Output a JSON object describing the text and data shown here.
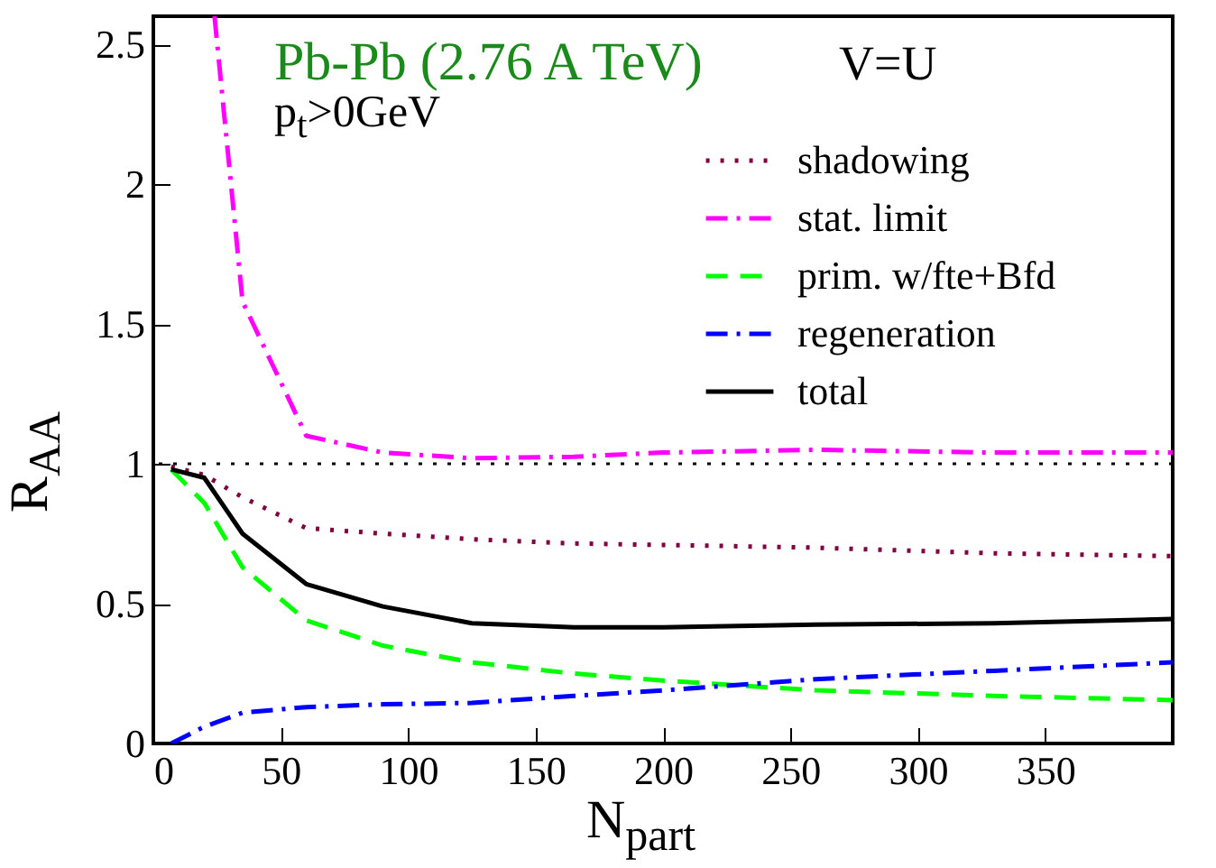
{
  "chart_data": {
    "type": "line",
    "title": "Pb-Pb (2.76 A TeV)",
    "annotations": [
      "p$_{t}$>0GeV",
      "V=U"
    ],
    "xlabel": "N$_{part}$",
    "ylabel": "R$_{AA}$",
    "x": [
      7,
      20,
      35,
      60,
      90,
      125,
      165,
      200,
      260,
      330,
      400
    ],
    "series": [
      {
        "name": "shadowing",
        "color": "#800040",
        "line_style": "dotted",
        "values": [
          0.99,
          0.96,
          0.88,
          0.77,
          0.75,
          0.73,
          0.715,
          0.71,
          0.7,
          0.68,
          0.67
        ]
      },
      {
        "name": "stat. limit",
        "color": "#ff00ff",
        "line_style": "dashdot",
        "x": [
          24,
          35,
          60,
          90,
          125,
          165,
          200,
          260,
          330,
          400
        ],
        "values": [
          2.6,
          1.58,
          1.1,
          1.04,
          1.02,
          1.025,
          1.04,
          1.05,
          1.04,
          1.04
        ]
      },
      {
        "name": "prim. w/fte+Bfd",
        "color": "#00ff00",
        "line_style": "dashed",
        "values": [
          0.98,
          0.86,
          0.63,
          0.44,
          0.35,
          0.29,
          0.25,
          0.225,
          0.19,
          0.17,
          0.155
        ]
      },
      {
        "name": "regeneration",
        "color": "#0000ff",
        "line_style": "dashdot",
        "values": [
          0,
          0.06,
          0.11,
          0.13,
          0.14,
          0.145,
          0.17,
          0.19,
          0.23,
          0.26,
          0.29
        ]
      },
      {
        "name": "total",
        "color": "#000000",
        "line_style": "solid",
        "values": [
          0.98,
          0.95,
          0.75,
          0.57,
          0.49,
          0.43,
          0.415,
          0.415,
          0.425,
          0.43,
          0.445
        ]
      }
    ],
    "ref_lines": [
      {
        "axis": "y",
        "value": 1,
        "color": "#000000",
        "line_style": "dotted"
      }
    ],
    "xlim": [
      0,
      400
    ],
    "xticks": [
      0,
      50,
      100,
      150,
      200,
      250,
      300,
      350
    ],
    "ylim": [
      0,
      2.6
    ],
    "yticks": [
      0,
      0.5,
      1,
      1.5,
      2,
      2.5
    ],
    "grid": false,
    "legend": "top right",
    "marker": "none"
  }
}
